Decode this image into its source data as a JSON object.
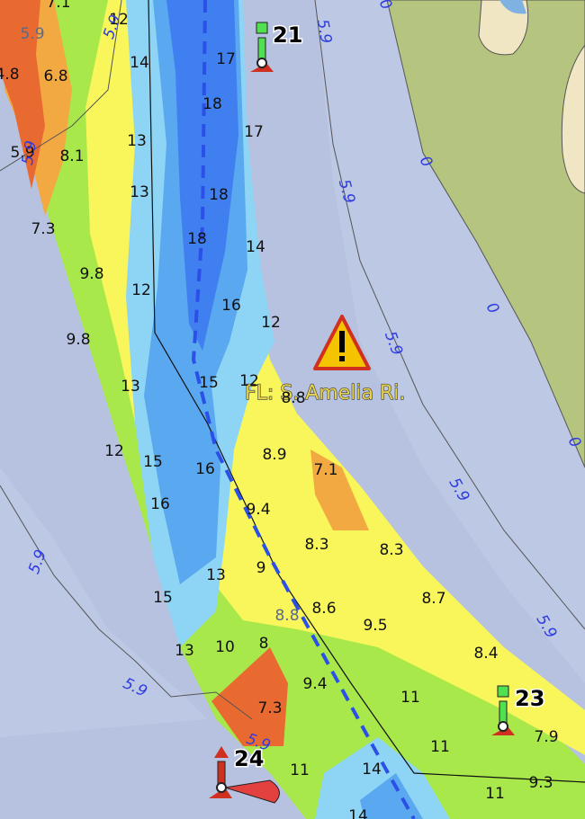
{
  "place_label": "FL: S. Amelia Ri.",
  "buoys": [
    "21",
    "23",
    "24"
  ],
  "soundings": [
    "7.1",
    "5.9",
    "4.8",
    "6.8",
    "5.9",
    "8.1",
    "7.3",
    "9.8",
    "9.8",
    "12",
    "14",
    "13",
    "13",
    "12",
    "13",
    "12",
    "15",
    "16",
    "17",
    "18",
    "17",
    "18",
    "18",
    "14",
    "16",
    "12",
    "15",
    "12",
    "8.8",
    "8.9",
    "16",
    "7.1",
    "9.4",
    "8.3",
    "8.3",
    "9",
    "13",
    "15",
    "8.8",
    "8.6",
    "8.7",
    "9.5",
    "13",
    "10",
    "8",
    "8.4",
    "9.4",
    "7.3",
    "11",
    "11",
    "7.9",
    "14",
    "11",
    "11",
    "9.3",
    "14"
  ],
  "contour_labels": [
    "5.9",
    "5.9",
    "0",
    "5.9",
    "0",
    "5.9",
    "0",
    "5.9",
    "0",
    "5.9",
    "5.9",
    "5.9",
    "5.9",
    "5.9"
  ]
}
